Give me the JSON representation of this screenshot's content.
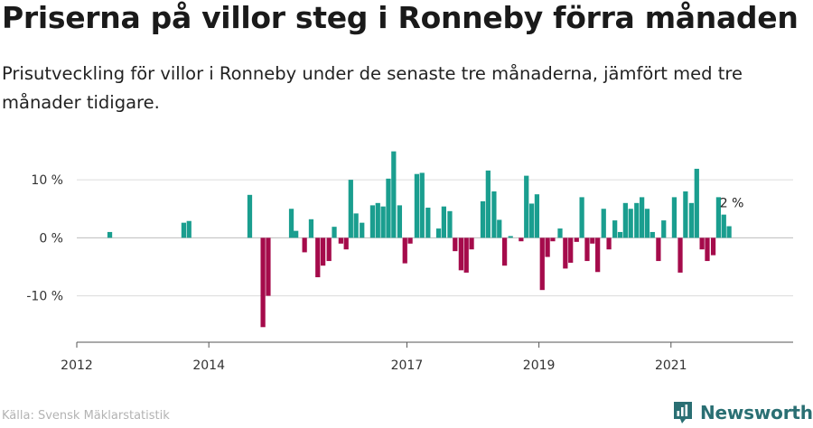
{
  "title": "Priserna på villor steg i Ronneby förra månaden",
  "subtitle": "Prisutveckling för villor i Ronneby under de senaste tre månaderna, jämfört med tre månader tidigare.",
  "source": "Källa: Svensk Mäklarstatistik",
  "brand": "Newsworthy",
  "colors": {
    "positive": "#1a9e8f",
    "negative": "#a50b4b",
    "grid": "#dcdcdc",
    "axis": "#555555",
    "brand": "#2a6f73"
  },
  "chart_data": {
    "type": "bar",
    "ylim": [
      -18,
      15
    ],
    "yticks": [
      {
        "v": 10,
        "label": "10 %"
      },
      {
        "v": 0,
        "label": "0 %"
      },
      {
        "v": -10,
        "label": "-10 %"
      }
    ],
    "xlim": [
      2012.0,
      2022.85
    ],
    "xticks": [
      {
        "v": 2012,
        "label": "2012"
      },
      {
        "v": 2014,
        "label": "2014"
      },
      {
        "v": 2017,
        "label": "2017"
      },
      {
        "v": 2019,
        "label": "2019"
      },
      {
        "v": 2021,
        "label": "2021"
      }
    ],
    "annotation": {
      "label": "2 %",
      "index": -1
    },
    "series": [
      {
        "t": 2012.5,
        "v": 1
      },
      {
        "t": 2013.62,
        "v": 2.6
      },
      {
        "t": 2013.7,
        "v": 2.9
      },
      {
        "t": 2014.62,
        "v": 7.4
      },
      {
        "t": 2014.82,
        "v": -15.4
      },
      {
        "t": 2014.9,
        "v": -10
      },
      {
        "t": 2015.25,
        "v": 5
      },
      {
        "t": 2015.32,
        "v": 1.2
      },
      {
        "t": 2015.45,
        "v": -2.5
      },
      {
        "t": 2015.55,
        "v": 3.2
      },
      {
        "t": 2015.65,
        "v": -6.8
      },
      {
        "t": 2015.73,
        "v": -4.8
      },
      {
        "t": 2015.82,
        "v": -4
      },
      {
        "t": 2015.9,
        "v": 1.9
      },
      {
        "t": 2016.0,
        "v": -1
      },
      {
        "t": 2016.08,
        "v": -2
      },
      {
        "t": 2016.15,
        "v": 10
      },
      {
        "t": 2016.23,
        "v": 4.2
      },
      {
        "t": 2016.32,
        "v": 2.6
      },
      {
        "t": 2016.48,
        "v": 5.6
      },
      {
        "t": 2016.56,
        "v": 6
      },
      {
        "t": 2016.64,
        "v": 5.4
      },
      {
        "t": 2016.72,
        "v": 10.2
      },
      {
        "t": 2016.8,
        "v": 14.9
      },
      {
        "t": 2016.89,
        "v": 5.6
      },
      {
        "t": 2016.97,
        "v": -4.4
      },
      {
        "t": 2017.05,
        "v": -1
      },
      {
        "t": 2017.15,
        "v": 11
      },
      {
        "t": 2017.23,
        "v": 11.2
      },
      {
        "t": 2017.32,
        "v": 5.2
      },
      {
        "t": 2017.48,
        "v": 1.6
      },
      {
        "t": 2017.56,
        "v": 5.4
      },
      {
        "t": 2017.65,
        "v": 4.6
      },
      {
        "t": 2017.73,
        "v": -2.3
      },
      {
        "t": 2017.82,
        "v": -5.6
      },
      {
        "t": 2017.9,
        "v": -6
      },
      {
        "t": 2017.98,
        "v": -2
      },
      {
        "t": 2018.15,
        "v": 6.3
      },
      {
        "t": 2018.23,
        "v": 11.6
      },
      {
        "t": 2018.32,
        "v": 8
      },
      {
        "t": 2018.4,
        "v": 3.1
      },
      {
        "t": 2018.48,
        "v": -4.8
      },
      {
        "t": 2018.57,
        "v": 0.3
      },
      {
        "t": 2018.73,
        "v": -0.6
      },
      {
        "t": 2018.81,
        "v": 10.7
      },
      {
        "t": 2018.89,
        "v": 5.9
      },
      {
        "t": 2018.97,
        "v": 7.5
      },
      {
        "t": 2019.05,
        "v": -9
      },
      {
        "t": 2019.13,
        "v": -3.3
      },
      {
        "t": 2019.21,
        "v": -0.6
      },
      {
        "t": 2019.32,
        "v": 1.6
      },
      {
        "t": 2019.4,
        "v": -5.3
      },
      {
        "t": 2019.48,
        "v": -4.3
      },
      {
        "t": 2019.57,
        "v": -0.7
      },
      {
        "t": 2019.65,
        "v": 7
      },
      {
        "t": 2019.73,
        "v": -4
      },
      {
        "t": 2019.81,
        "v": -1
      },
      {
        "t": 2019.89,
        "v": -5.9
      },
      {
        "t": 2019.98,
        "v": 5
      },
      {
        "t": 2020.06,
        "v": -2
      },
      {
        "t": 2020.15,
        "v": 3
      },
      {
        "t": 2020.23,
        "v": 1
      },
      {
        "t": 2020.31,
        "v": 6
      },
      {
        "t": 2020.39,
        "v": 5
      },
      {
        "t": 2020.48,
        "v": 6
      },
      {
        "t": 2020.56,
        "v": 7
      },
      {
        "t": 2020.64,
        "v": 5
      },
      {
        "t": 2020.72,
        "v": 1
      },
      {
        "t": 2020.81,
        "v": -4
      },
      {
        "t": 2020.89,
        "v": 3
      },
      {
        "t": 2021.05,
        "v": 7
      },
      {
        "t": 2021.14,
        "v": -6
      },
      {
        "t": 2021.22,
        "v": 8
      },
      {
        "t": 2021.31,
        "v": 6
      },
      {
        "t": 2021.39,
        "v": 11.9
      },
      {
        "t": 2021.47,
        "v": -2
      },
      {
        "t": 2021.55,
        "v": -4
      },
      {
        "t": 2021.64,
        "v": -3
      },
      {
        "t": 2021.72,
        "v": 7
      },
      {
        "t": 2021.8,
        "v": 4
      },
      {
        "t": 2021.88,
        "v": 2
      }
    ]
  }
}
